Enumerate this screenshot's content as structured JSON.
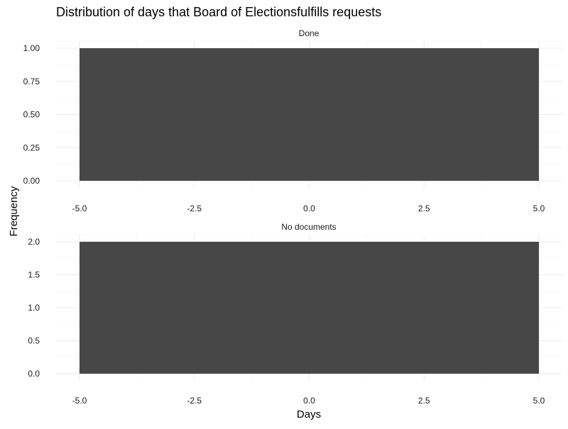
{
  "chart_data": {
    "type": "bar",
    "title": "Distribution of days that Board of Electionsfulfills requests",
    "xlabel": "Days",
    "ylabel": "Frequency",
    "grid": true,
    "bar_color": "#474747",
    "facets": [
      {
        "name": "Done",
        "x_ticks": [
          -5.0,
          -2.5,
          0.0,
          2.5,
          5.0
        ],
        "x_tick_labels": [
          "-5.0",
          "-2.5",
          "0.0",
          "2.5",
          "5.0"
        ],
        "y_ticks": [
          0,
          0.25,
          0.5,
          0.75,
          1.0
        ],
        "y_tick_labels": [
          "0.00",
          "0.25",
          "0.50",
          "0.75",
          "1.00"
        ],
        "xlim": [
          -5.0,
          5.0
        ],
        "ylim": [
          0,
          1.0
        ],
        "bars": [
          {
            "x_start": -5.0,
            "x_end": 5.0,
            "value": 1
          }
        ]
      },
      {
        "name": "No documents",
        "x_ticks": [
          -5.0,
          -2.5,
          0.0,
          2.5,
          5.0
        ],
        "x_tick_labels": [
          "-5.0",
          "-2.5",
          "0.0",
          "2.5",
          "5.0"
        ],
        "y_ticks": [
          0,
          0.5,
          1.0,
          1.5,
          2.0
        ],
        "y_tick_labels": [
          "0.0",
          "0.5",
          "1.0",
          "1.5",
          "2.0"
        ],
        "xlim": [
          -5.0,
          5.0
        ],
        "ylim": [
          0,
          2.0
        ],
        "bars": [
          {
            "x_start": -5.0,
            "x_end": 5.0,
            "value": 2
          }
        ]
      }
    ]
  }
}
